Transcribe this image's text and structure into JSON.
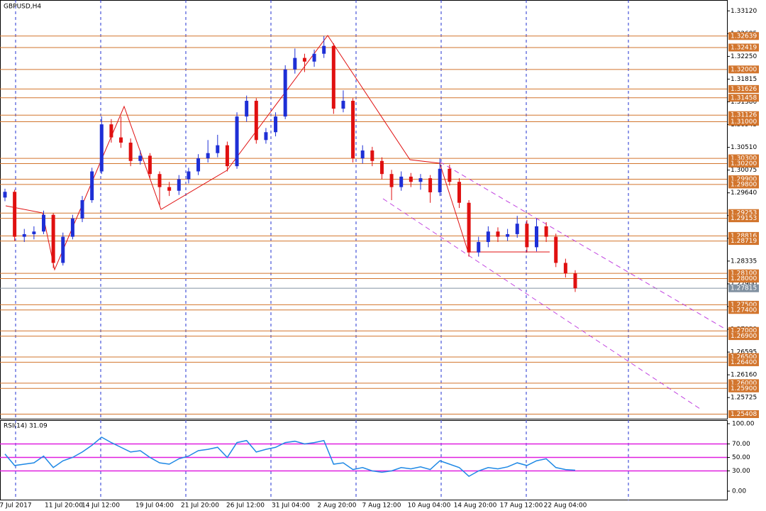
{
  "chart_data": [
    {
      "type": "candlestick",
      "title": "GBPUSD,H4",
      "open": [
        1.2955,
        1.2966,
        1.288,
        1.2885,
        1.289,
        1.2922,
        1.283,
        1.288,
        1.2915,
        1.295,
        1.3005,
        1.3095,
        1.307,
        1.306,
        1.3025,
        1.3035,
        1.3,
        1.2975,
        1.2968,
        1.299,
        1.3005,
        1.303,
        1.304,
        1.3055,
        1.3015,
        1.311,
        1.314,
        1.3065,
        1.308,
        1.311,
        1.32,
        1.3222,
        1.3215,
        1.323,
        1.3245,
        1.3125,
        1.314,
        1.303,
        1.3045,
        1.3025,
        1.3,
        1.2975,
        1.2995,
        1.2985,
        1.2992,
        1.2965,
        1.301,
        1.2985,
        1.2945,
        1.285,
        1.287,
        1.289,
        1.288,
        1.2885,
        1.2905,
        1.286,
        1.29,
        1.288,
        1.283,
        1.281
      ],
      "high": [
        1.2972,
        1.297,
        1.2895,
        1.29,
        1.293,
        1.2925,
        1.2888,
        1.2922,
        1.2958,
        1.3012,
        1.311,
        1.3105,
        1.311,
        1.3068,
        1.3045,
        1.304,
        1.3005,
        1.2985,
        1.2998,
        1.3012,
        1.3038,
        1.3065,
        1.3075,
        1.3062,
        1.3118,
        1.315,
        1.3145,
        1.3088,
        1.3118,
        1.3208,
        1.324,
        1.323,
        1.3238,
        1.3264,
        1.325,
        1.316,
        1.3145,
        1.3055,
        1.3052,
        1.3032,
        1.3008,
        1.3005,
        1.3002,
        1.3,
        1.2998,
        1.303,
        1.3018,
        1.2992,
        1.295,
        1.288,
        1.29,
        1.2898,
        1.2895,
        1.292,
        1.2912,
        1.2915,
        1.2908,
        1.2886,
        1.2838,
        1.2816
      ],
      "low": [
        1.2948,
        1.2872,
        1.287,
        1.2875,
        1.2885,
        1.282,
        1.2825,
        1.2875,
        1.2908,
        1.2945,
        1.3,
        1.306,
        1.305,
        1.3015,
        1.3018,
        1.2992,
        1.294,
        1.2958,
        1.296,
        1.2982,
        1.2998,
        1.3022,
        1.3032,
        1.3005,
        1.301,
        1.31,
        1.3058,
        1.3058,
        1.3072,
        1.3105,
        1.3192,
        1.3195,
        1.3205,
        1.3222,
        1.3115,
        1.3118,
        1.3022,
        1.302,
        1.3015,
        1.299,
        1.295,
        1.2968,
        1.2975,
        1.297,
        1.2945,
        1.2958,
        1.2978,
        1.2935,
        1.2842,
        1.2842,
        1.286,
        1.287,
        1.2872,
        1.2878,
        1.285,
        1.2852,
        1.287,
        1.2822,
        1.2802,
        1.27745
      ],
      "close": [
        1.2966,
        1.288,
        1.2885,
        1.289,
        1.2922,
        1.283,
        1.288,
        1.2915,
        1.295,
        1.3005,
        1.3095,
        1.307,
        1.306,
        1.3025,
        1.3035,
        1.3,
        1.2975,
        1.2968,
        1.299,
        1.3005,
        1.303,
        1.304,
        1.3055,
        1.3015,
        1.311,
        1.314,
        1.3065,
        1.308,
        1.311,
        1.32,
        1.3222,
        1.3215,
        1.323,
        1.3245,
        1.3125,
        1.314,
        1.303,
        1.3045,
        1.3025,
        1.3,
        1.2975,
        1.2995,
        1.2985,
        1.2992,
        1.2965,
        1.301,
        1.2985,
        1.2945,
        1.285,
        1.287,
        1.289,
        1.288,
        1.2885,
        1.2905,
        1.286,
        1.29,
        1.288,
        1.283,
        1.281,
        1.27815
      ],
      "bull_color": "#1e2fd6",
      "bear_color": "#e01010",
      "ylim": [
        1.2532,
        1.3326
      ],
      "yticks": [
        {
          "value": 1.3312,
          "label": "1.33120"
        },
        1.32685,
        {
          "value": 1.3225,
          "label": "1.32250"
        },
        1.31815,
        {
          "value": 1.3138,
          "label": "1.31380"
        },
        1.30945,
        {
          "value": 1.3051,
          "label": "1.30510"
        },
        1.30075,
        {
          "value": 1.2964,
          "label": "1.29640"
        },
        1.29205,
        {
          "value": 1.2877,
          "label": "1.28770"
        },
        1.28335,
        {
          "value": 1.279,
          "label": "1.27900"
        },
        1.27465,
        {
          "value": 1.2703,
          "label": "1.27030"
        },
        1.26595,
        {
          "value": 1.2616,
          "label": "1.26160"
        },
        1.25725
      ],
      "levels": [
        1.32639,
        1.32419,
        {
          "value": 1.32,
          "label": "1.32000"
        },
        1.31626,
        1.31458,
        1.31126,
        {
          "value": 1.31,
          "label": "1.31000"
        },
        {
          "value": 1.303,
          "label": "1.30300"
        },
        {
          "value": 1.302,
          "label": "1.30200"
        },
        {
          "value": 1.299,
          "label": "1.29900"
        },
        {
          "value": 1.298,
          "label": "1.29800"
        },
        1.29253,
        1.29153,
        1.28816,
        1.28719,
        {
          "value": 1.281,
          "label": "1.28100"
        },
        {
          "value": 1.28,
          "label": "1.28000"
        },
        {
          "value": 1.275,
          "label": "1.27500"
        },
        {
          "value": 1.274,
          "label": "1.27400"
        },
        {
          "value": 1.27,
          "label": "1.27000"
        },
        {
          "value": 1.269,
          "label": "1.26900"
        },
        {
          "value": 1.265,
          "label": "1.26500"
        },
        {
          "value": 1.264,
          "label": "1.26400"
        },
        {
          "value": 1.26,
          "label": "1.26000"
        },
        {
          "value": 1.259,
          "label": "1.25900"
        },
        1.25408
      ],
      "level_color": "#d2752d",
      "current_price": 1.27815,
      "time_labels": [
        "7 Jul 2017",
        "11 Jul 20:00",
        "14 Jul 12:00",
        "19 Jul 04:00",
        "21 Jul 20:00",
        "26 Jul 12:00",
        "31 Jul 04:00",
        "2 Aug 20:00",
        "7 Aug 12:00",
        "10 Aug 04:00",
        "14 Aug 20:00",
        "17 Aug 12:00",
        "22 Aug 04:00"
      ]
    },
    {
      "type": "line",
      "title": "RSI(14) 31.09",
      "color": "#1e88e5",
      "values": [
        55,
        38,
        40,
        42,
        52,
        35,
        45,
        50,
        58,
        68,
        80,
        72,
        65,
        58,
        60,
        50,
        42,
        40,
        48,
        52,
        60,
        62,
        65,
        50,
        72,
        75,
        58,
        62,
        65,
        72,
        74,
        70,
        72,
        75,
        40,
        42,
        32,
        35,
        30,
        28,
        30,
        35,
        33,
        36,
        32,
        45,
        40,
        35,
        22,
        30,
        35,
        33,
        36,
        42,
        38,
        45,
        48,
        35,
        32,
        31.09
      ],
      "ylim": [
        0,
        100
      ],
      "yticks": [
        {
          "value": 100,
          "label": "100.00"
        },
        {
          "value": 70,
          "label": "70.00"
        },
        {
          "value": 50,
          "label": "50.00"
        },
        {
          "value": 30,
          "label": "30.00"
        },
        {
          "value": 0,
          "label": "0.00"
        }
      ],
      "levels": [
        70,
        50,
        30
      ],
      "level_color": "#e020e0"
    }
  ]
}
